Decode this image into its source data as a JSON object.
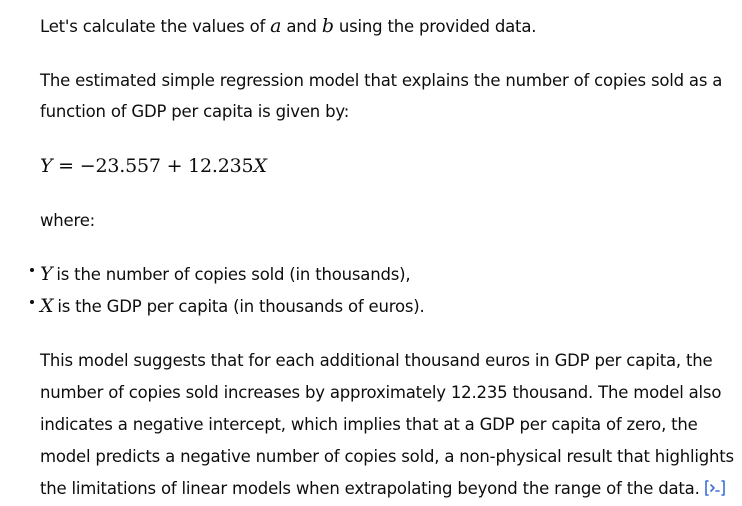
{
  "intro": {
    "before_a": "Let's calculate the values of ",
    "var_a": "a",
    "between": " and ",
    "var_b": "b",
    "after_b": " using the provided data."
  },
  "model_intro": {
    "line1": "The estimated simple regression model that explains the number of copies sold as a",
    "line2": "function of GDP per capita is given by:"
  },
  "equation": {
    "lhs": "Y",
    "equals": " = −23.557 + 12.235",
    "rhs_var": "X"
  },
  "where_label": "where:",
  "bullets": [
    {
      "var": "Y",
      "text": "is the number of copies sold (in thousands),"
    },
    {
      "var": "X",
      "text": "is the GDP per capita (in thousands of euros)."
    }
  ],
  "interpretation": {
    "line1": "This model suggests that for each additional thousand euros in GDP per capita, the",
    "line2": "number of copies sold increases by approximately 12.235 thousand. The model also",
    "line3": "indicates a negative intercept, which implies that at a GDP per capita of zero, the",
    "line4": "model predicts a negative number of copies sold, a non-physical result that highlights",
    "line5": "the limitations of linear models when extrapolating beyond the range of the data."
  },
  "icons": {
    "analysis": "analysis-result-icon",
    "accent_color": "#3b6fd6"
  }
}
